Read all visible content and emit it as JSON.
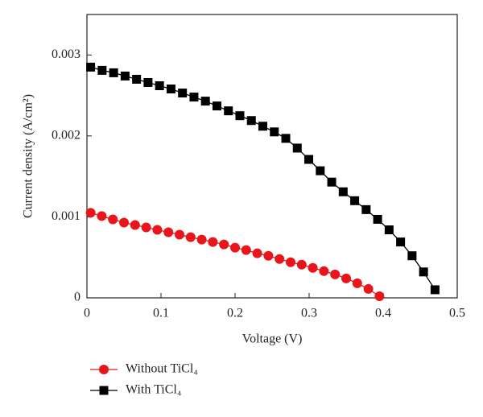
{
  "chart_data": {
    "type": "line",
    "xlabel": "Voltage (V)",
    "ylabel": "Current density (A/cm²)",
    "xlim": [
      0,
      0.5
    ],
    "xticks": [
      {
        "value": 0,
        "label": "0"
      },
      0.1,
      0.2,
      0.3,
      0.4,
      0.5
    ],
    "ylim": [
      0,
      0.0035
    ],
    "yticks": [
      {
        "value": 0,
        "label": "0"
      },
      0.001,
      0.002,
      0.003
    ],
    "series": [
      {
        "name": "Without TiCl₄",
        "color": "#e8161b",
        "marker": "circle",
        "x": [
          0.005,
          0.02,
          0.035,
          0.05,
          0.065,
          0.08,
          0.095,
          0.11,
          0.125,
          0.14,
          0.155,
          0.17,
          0.185,
          0.2,
          0.215,
          0.23,
          0.245,
          0.26,
          0.275,
          0.29,
          0.305,
          0.32,
          0.335,
          0.35,
          0.365,
          0.38,
          0.395
        ],
        "values": [
          0.00105,
          0.00101,
          0.00097,
          0.00093,
          0.0009,
          0.00087,
          0.00084,
          0.00081,
          0.00078,
          0.00075,
          0.00072,
          0.00069,
          0.00066,
          0.00062,
          0.00059,
          0.00055,
          0.00052,
          0.00048,
          0.00044,
          0.00041,
          0.00037,
          0.00033,
          0.00029,
          0.00024,
          0.00018,
          0.00011,
          2e-05
        ]
      },
      {
        "name": "With TiCl₄",
        "color": "#000000",
        "marker": "square",
        "x": [
          0.005,
          0.0205,
          0.036,
          0.0515,
          0.067,
          0.0825,
          0.098,
          0.1135,
          0.129,
          0.1445,
          0.16,
          0.1755,
          0.191,
          0.2065,
          0.222,
          0.2375,
          0.253,
          0.2685,
          0.284,
          0.2995,
          0.315,
          0.3305,
          0.346,
          0.3615,
          0.377,
          0.3925,
          0.408,
          0.4235,
          0.439,
          0.4545,
          0.47
        ],
        "values": [
          0.00285,
          0.00281,
          0.00278,
          0.00274,
          0.0027,
          0.00266,
          0.00262,
          0.00258,
          0.00253,
          0.00248,
          0.00243,
          0.00237,
          0.00231,
          0.00225,
          0.00219,
          0.00212,
          0.00205,
          0.00197,
          0.00185,
          0.00171,
          0.00157,
          0.00143,
          0.00131,
          0.0012,
          0.00109,
          0.00097,
          0.00084,
          0.00069,
          0.00052,
          0.00032,
          0.0001
        ]
      }
    ]
  }
}
